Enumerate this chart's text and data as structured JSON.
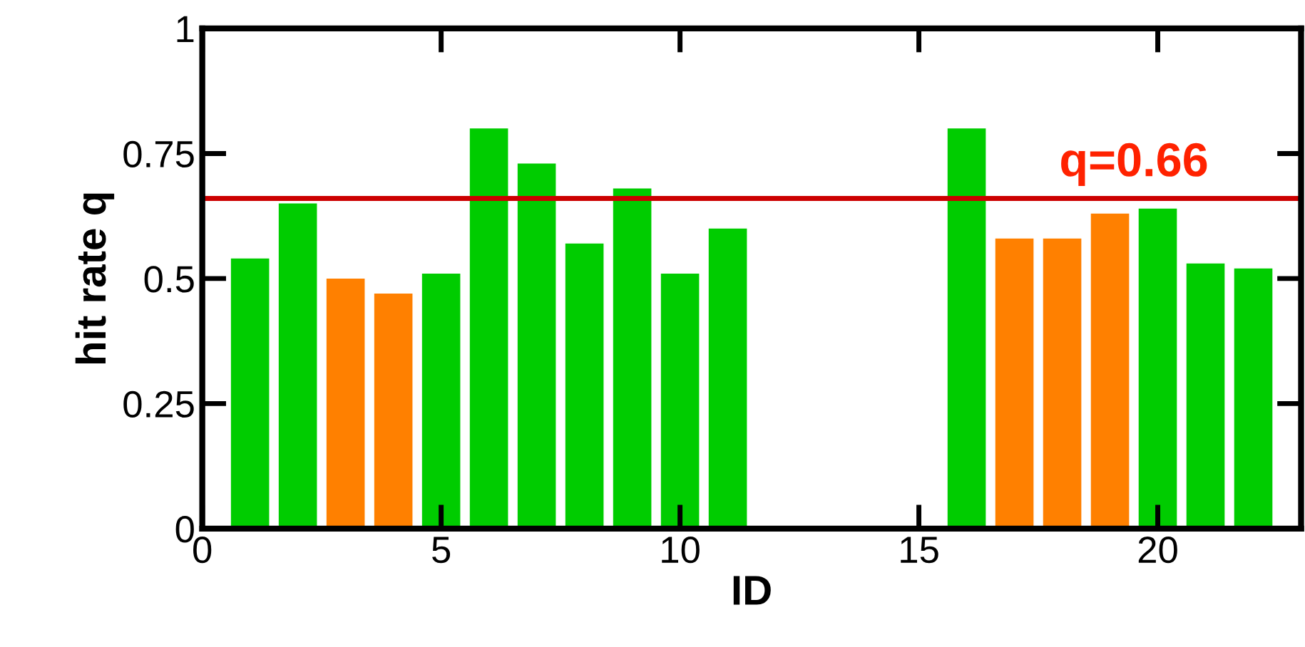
{
  "chart_data": {
    "type": "bar",
    "xlabel": "ID",
    "ylabel": "hit rate q",
    "x": [
      1,
      2,
      3,
      4,
      5,
      6,
      7,
      8,
      9,
      10,
      11,
      16,
      17,
      18,
      19,
      20,
      21,
      22
    ],
    "values": [
      0.54,
      0.65,
      0.5,
      0.47,
      0.51,
      0.8,
      0.73,
      0.57,
      0.68,
      0.51,
      0.6,
      0.8,
      0.58,
      0.58,
      0.63,
      0.64,
      0.53,
      0.52
    ],
    "colors": [
      "#00cc00",
      "#00cc00",
      "#ff8000",
      "#ff8000",
      "#00cc00",
      "#00cc00",
      "#00cc00",
      "#00cc00",
      "#00cc00",
      "#00cc00",
      "#00cc00",
      "#00cc00",
      "#ff8000",
      "#ff8000",
      "#ff8000",
      "#00cc00",
      "#00cc00",
      "#00cc00"
    ],
    "xlim": [
      0,
      23
    ],
    "xticks": [
      0,
      5,
      10,
      15,
      20
    ],
    "ylim": [
      0,
      1
    ],
    "yticks": [
      0,
      0.25,
      0.5,
      0.75,
      1
    ],
    "ref_lines": [
      {
        "axis": "y",
        "value": 0.66,
        "label": "q=0.66",
        "color": "#cc0000"
      }
    ],
    "grid": false,
    "legend": false
  }
}
